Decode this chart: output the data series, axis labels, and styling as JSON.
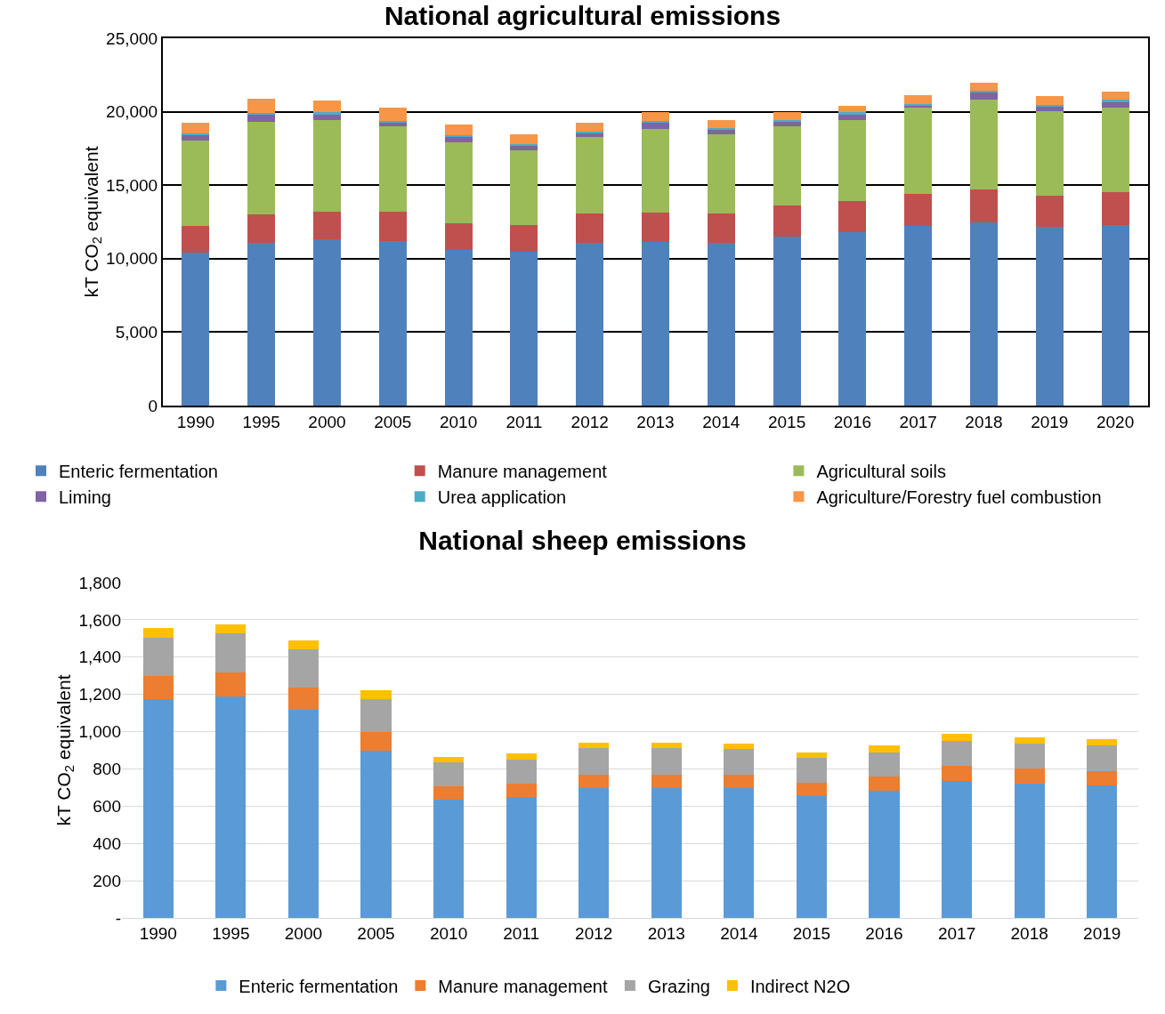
{
  "chart_data": [
    {
      "type": "bar",
      "stacked": true,
      "title": "National agricultural emissions",
      "ylabel": "kT CO$_{2}$ equivalent",
      "categories": [
        "1990",
        "1995",
        "2000",
        "2005",
        "2010",
        "2011",
        "2012",
        "2013",
        "2014",
        "2015",
        "2016",
        "2017",
        "2018",
        "2019",
        "2020"
      ],
      "series": [
        {
          "name": "Enteric fermentation",
          "color": "#4f81bd",
          "values": [
            10400,
            11100,
            11300,
            11200,
            10600,
            10450,
            11050,
            11150,
            11050,
            11500,
            11800,
            12200,
            12500,
            12150,
            12300
          ]
        },
        {
          "name": "Manure management",
          "color": "#c0504d",
          "values": [
            1800,
            1900,
            1900,
            2000,
            1800,
            1850,
            2000,
            2000,
            2000,
            2100,
            2100,
            2200,
            2200,
            2150,
            2200
          ]
        },
        {
          "name": "Agricultural soils",
          "color": "#9bbb59",
          "values": [
            5850,
            6300,
            6250,
            5800,
            5500,
            5050,
            5250,
            5650,
            5400,
            5400,
            5550,
            5850,
            6150,
            5750,
            5800
          ]
        },
        {
          "name": "Liming",
          "color": "#8064a2",
          "values": [
            400,
            500,
            400,
            250,
            400,
            350,
            250,
            500,
            350,
            350,
            400,
            200,
            500,
            300,
            400
          ]
        },
        {
          "name": "Urea application",
          "color": "#4bacc6",
          "values": [
            100,
            100,
            100,
            100,
            100,
            100,
            100,
            100,
            100,
            100,
            100,
            100,
            100,
            100,
            100
          ]
        },
        {
          "name": "Agriculture/Forestry fuel combustion",
          "color": "#f79646",
          "values": [
            680,
            1000,
            830,
            900,
            710,
            660,
            580,
            550,
            510,
            500,
            470,
            590,
            530,
            630,
            580
          ]
        }
      ],
      "ylim": [
        0,
        25000
      ],
      "yticks": [
        0,
        {
          "value": 5000,
          "label": "5,000"
        },
        {
          "value": 10000,
          "label": "10,000"
        },
        {
          "value": 15000,
          "label": "15,000"
        },
        {
          "value": 20000,
          "label": "20,000"
        },
        {
          "value": 25000,
          "label": "25,000"
        }
      ],
      "grid": "y",
      "legend": "bottom"
    },
    {
      "type": "bar",
      "stacked": true,
      "title": "National sheep emissions",
      "ylabel": "kT CO$_{2}$ equivalent",
      "categories": [
        "1990",
        "1995",
        "2000",
        "2005",
        "2010",
        "2011",
        "2012",
        "2013",
        "2014",
        "2015",
        "2016",
        "2017",
        "2018",
        "2019"
      ],
      "series": [
        {
          "name": "Enteric fermentation",
          "color": "#5b9bd5",
          "values": [
            1175,
            1190,
            1115,
            900,
            635,
            650,
            695,
            695,
            695,
            655,
            685,
            735,
            720,
            710
          ]
        },
        {
          "name": "Manure management",
          "color": "#ed7d31",
          "values": [
            125,
            130,
            120,
            100,
            70,
            70,
            75,
            75,
            75,
            70,
            75,
            80,
            80,
            80
          ]
        },
        {
          "name": "Grazing",
          "color": "#a5a5a5",
          "values": [
            205,
            210,
            205,
            175,
            130,
            130,
            140,
            140,
            135,
            135,
            130,
            135,
            135,
            135
          ]
        },
        {
          "name": "Indirect N2O",
          "color": "#ffc000",
          "values": [
            50,
            45,
            50,
            45,
            30,
            35,
            30,
            30,
            30,
            30,
            35,
            40,
            35,
            35
          ]
        }
      ],
      "ylim": [
        0,
        1800
      ],
      "yticks": [
        {
          "value": 0,
          "label": "-"
        },
        200,
        400,
        600,
        800,
        {
          "value": 1000,
          "label": "1,000"
        },
        {
          "value": 1200,
          "label": "1,200"
        },
        {
          "value": 1400,
          "label": "1,400"
        },
        {
          "value": 1600,
          "label": "1,600"
        },
        {
          "value": 1800,
          "label": "1,800"
        }
      ],
      "grid": "y",
      "legend": "bottom"
    }
  ]
}
